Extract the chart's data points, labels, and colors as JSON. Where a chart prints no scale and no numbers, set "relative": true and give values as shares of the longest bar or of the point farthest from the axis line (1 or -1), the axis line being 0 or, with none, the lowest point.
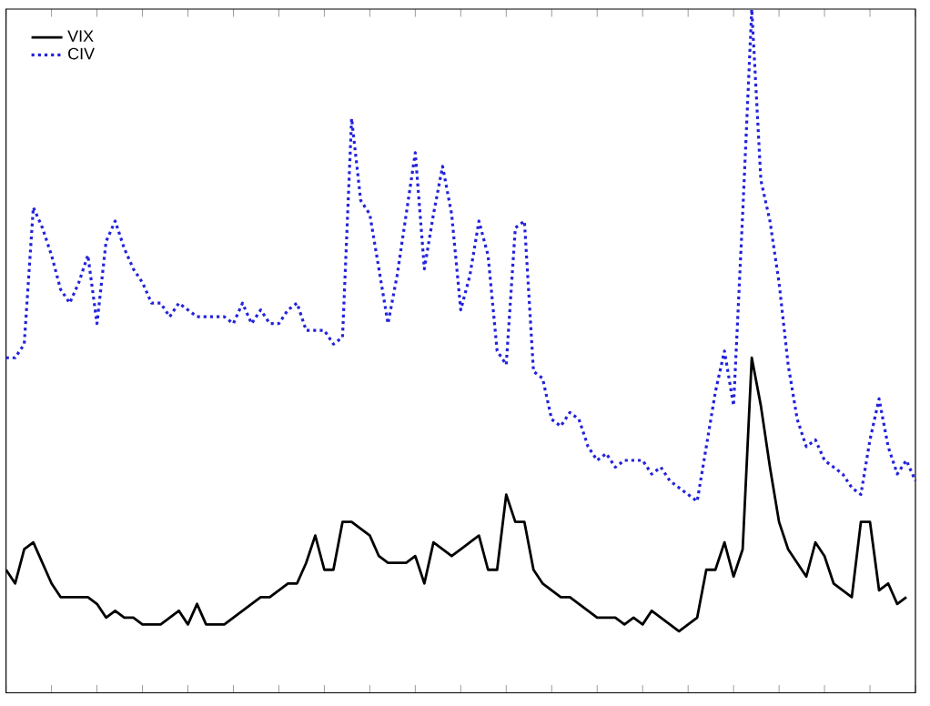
{
  "chart_data": {
    "type": "line",
    "relative": true,
    "grid": false,
    "legend": "top left",
    "categories": [
      null,
      null,
      null,
      null,
      null,
      null,
      null,
      null,
      null,
      null,
      null,
      null,
      null,
      null,
      null,
      null,
      null,
      null,
      null,
      null,
      null,
      null,
      null,
      null,
      null,
      null,
      null,
      null,
      null,
      null,
      null,
      null,
      null,
      null,
      null,
      null,
      null,
      null,
      null,
      null,
      null,
      null,
      null,
      null,
      null,
      null,
      null,
      null,
      null,
      null,
      null,
      null,
      null,
      null,
      null,
      null,
      null,
      null,
      null,
      null,
      null,
      null,
      null,
      null,
      null,
      null,
      null,
      null,
      null,
      null,
      null,
      null,
      null,
      null,
      null,
      null,
      null,
      null,
      null,
      null,
      null,
      null,
      null,
      null,
      null,
      null,
      null,
      null,
      null,
      null,
      null,
      null,
      null,
      null,
      null,
      null,
      null,
      null,
      null,
      null,
      null
    ],
    "series": [
      {
        "name": "VIX",
        "color": "#000000",
        "line_style": "solid",
        "values": [
          0.18,
          0.16,
          0.21,
          0.22,
          0.19,
          0.16,
          0.14,
          0.14,
          0.14,
          0.14,
          0.13,
          0.11,
          0.12,
          0.11,
          0.11,
          0.1,
          0.1,
          0.1,
          0.11,
          0.12,
          0.1,
          0.13,
          0.1,
          0.1,
          0.1,
          0.11,
          0.12,
          0.13,
          0.14,
          0.14,
          0.15,
          0.16,
          0.16,
          0.19,
          0.23,
          0.18,
          0.18,
          0.25,
          0.25,
          0.24,
          0.23,
          0.2,
          0.19,
          0.19,
          0.19,
          0.2,
          0.16,
          0.22,
          0.21,
          0.2,
          0.21,
          0.22,
          0.23,
          0.18,
          0.18,
          0.29,
          0.25,
          0.25,
          0.18,
          0.16,
          0.15,
          0.14,
          0.14,
          0.13,
          0.12,
          0.11,
          0.11,
          0.11,
          0.1,
          0.11,
          0.1,
          0.12,
          0.11,
          0.1,
          0.09,
          0.1,
          0.11,
          0.18,
          0.18,
          0.22,
          0.17,
          0.21,
          0.49,
          0.42,
          0.33,
          0.25,
          0.21,
          0.19,
          0.17,
          0.22,
          0.2,
          0.16,
          0.15,
          0.14,
          0.25,
          0.25,
          0.15,
          0.16,
          0.13,
          0.14,
          null
        ]
      },
      {
        "name": "CIV",
        "color": "#2222dd",
        "line_style": "dotted",
        "values": [
          0.49,
          0.49,
          0.51,
          0.71,
          0.68,
          0.64,
          0.59,
          0.57,
          0.6,
          0.64,
          0.54,
          0.66,
          0.69,
          0.65,
          0.62,
          0.6,
          0.57,
          0.57,
          0.55,
          0.57,
          0.56,
          0.55,
          0.55,
          0.55,
          0.55,
          0.54,
          0.57,
          0.54,
          0.56,
          0.54,
          0.54,
          0.56,
          0.57,
          0.53,
          0.53,
          0.53,
          0.51,
          0.52,
          0.84,
          0.72,
          0.7,
          0.62,
          0.54,
          0.61,
          0.7,
          0.79,
          0.62,
          0.7,
          0.77,
          0.7,
          0.56,
          0.61,
          0.69,
          0.64,
          0.5,
          0.48,
          0.68,
          0.69,
          0.47,
          0.46,
          0.4,
          0.39,
          0.41,
          0.4,
          0.36,
          0.34,
          0.35,
          0.33,
          0.34,
          0.34,
          0.34,
          0.32,
          0.33,
          0.31,
          0.3,
          0.29,
          0.28,
          0.36,
          0.44,
          0.5,
          0.42,
          0.7,
          1,
          0.75,
          0.69,
          0.6,
          0.48,
          0.4,
          0.36,
          0.37,
          0.34,
          0.33,
          0.32,
          0.3,
          0.29,
          0.37,
          0.43,
          0.36,
          0.32,
          0.34,
          0.31
        ]
      }
    ]
  }
}
